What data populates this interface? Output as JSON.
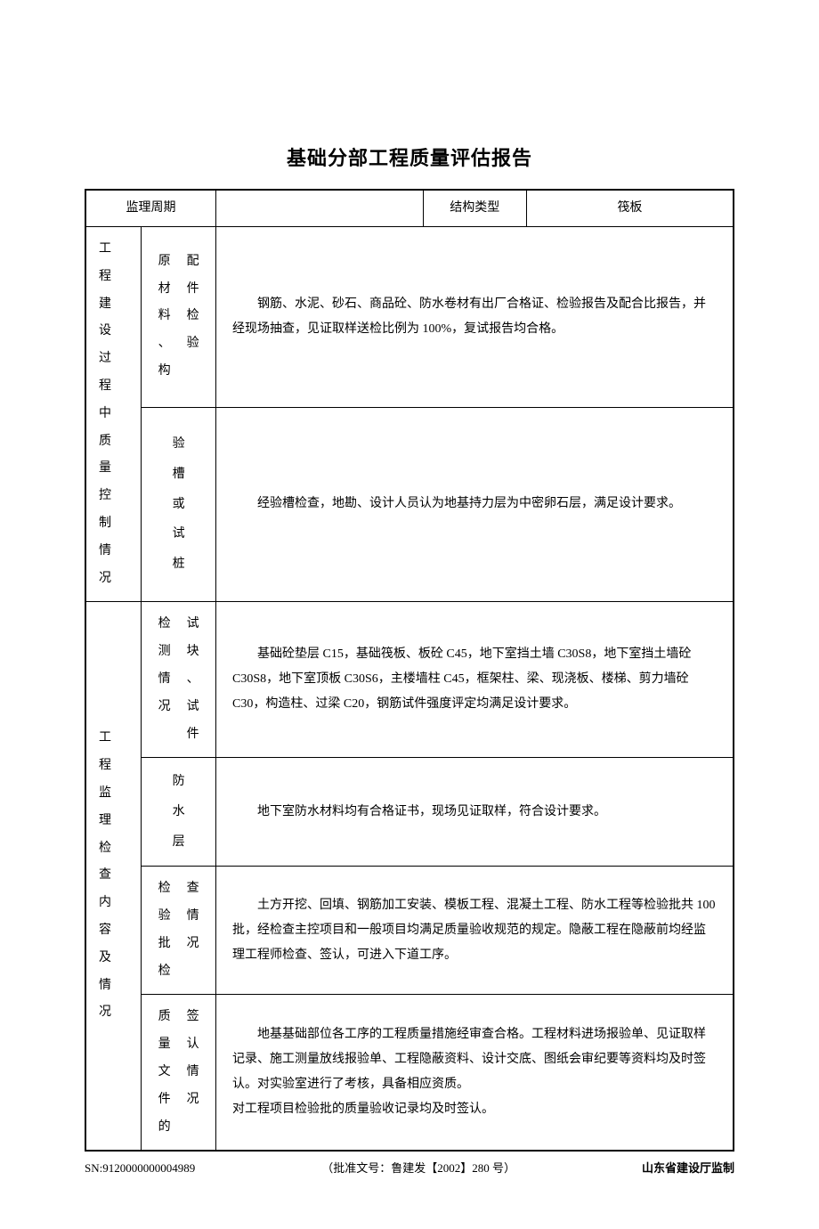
{
  "title": "基础分部工程质量评估报告",
  "header": {
    "c1": "监理周期",
    "c2": "",
    "c3": "结构类型",
    "c4": "筏板"
  },
  "leftGroups": {
    "g1": "工程建设过程中质量控制情况",
    "g2": "工程监理检查内容及情况"
  },
  "rows": {
    "r1": {
      "subL": "原材料、构",
      "subR": "配件检验",
      "content": "钢筋、水泥、砂石、商品砼、防水卷材有出厂合格证、检验报告及配合比报告，并经现场抽查，见证取样送检比例为 100%，复试报告均合格。"
    },
    "r2": {
      "sub": "验槽或试桩",
      "content": "经验槽检查，地勘、设计人员认为地基持力层为中密卵石层，满足设计要求。"
    },
    "r3": {
      "subL": "检测情况",
      "subR": "试块、试件",
      "content": "基础砼垫层 C15，基础筏板、板砼 C45，地下室挡土墙 C30S8，地下室挡土墙砼 C30S8，地下室顶板 C30S6，主楼墙柱 C45，框架柱、梁、现浇板、楼梯、剪力墙砼 C30，构造柱、过梁 C20，钢筋试件强度评定均满足设计要求。"
    },
    "r4": {
      "sub": "防水层",
      "content": "地下室防水材料均有合格证书，现场见证取样，符合设计要求。"
    },
    "r5": {
      "subL": "检验批检",
      "subR": "查情况",
      "content": "土方开挖、回填、钢筋加工安装、模板工程、混凝土工程、防水工程等检验批共 100 批，经检查主控项目和一般项目均满足质量验收规范的规定。隐蔽工程在隐蔽前均经监理工程师检查、签认，可进入下道工序。"
    },
    "r6": {
      "subL": "质量文件的",
      "subR": "签认情况",
      "c1": "地基基础部位各工序的工程质量措施经审查合格。工程材料进场报验单、见证取样记录、施工测量放线报验单、工程隐蔽资料、设计交底、图纸会审纪要等资料均及时签认。对实验室进行了考核，具备相应资质。",
      "c2": "对工程项目检验批的质量验收记录均及时签认。"
    }
  },
  "footer": {
    "sn": "SN:9120000000004989",
    "approval": "（批准文号：鲁建发【2002】280 号）",
    "org": "山东省建设厅监制"
  }
}
